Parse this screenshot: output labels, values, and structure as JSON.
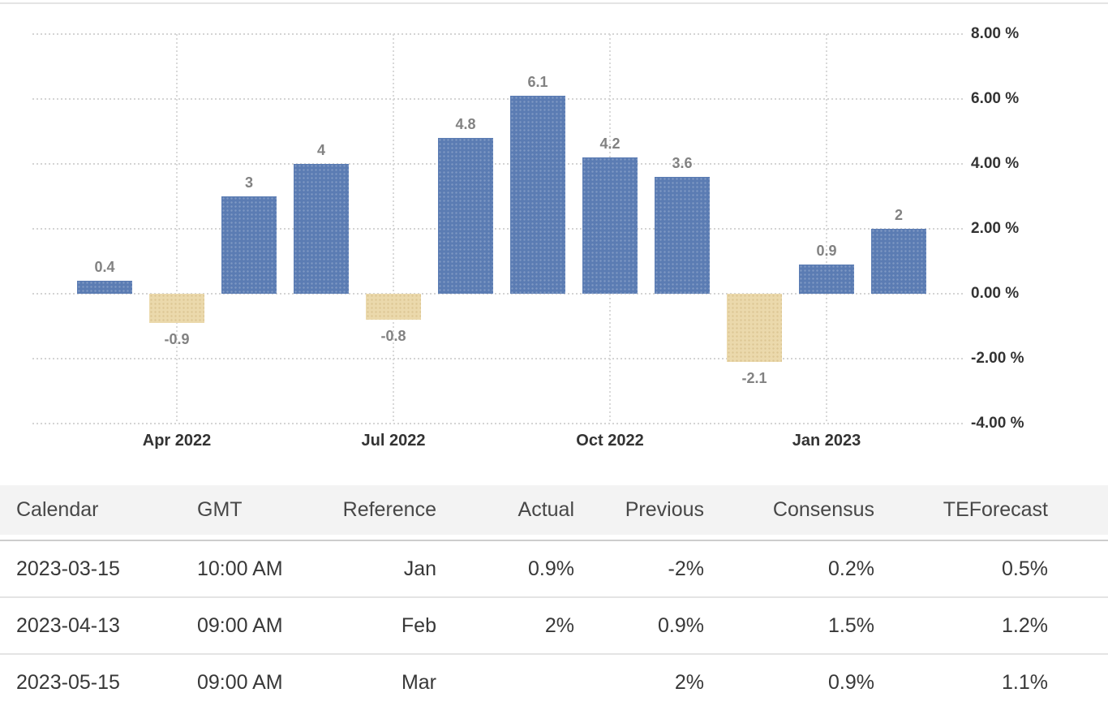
{
  "chart_data": {
    "type": "bar",
    "title": "",
    "xlabel": "",
    "ylabel": "",
    "values": [
      0.4,
      -0.9,
      3,
      4,
      -0.8,
      4.8,
      6.1,
      4.2,
      3.6,
      -2.1,
      0.9,
      2
    ],
    "bar_labels": [
      "0.4",
      "-0.9",
      "3",
      "4",
      "-0.8",
      "4.8",
      "6.1",
      "4.2",
      "3.6",
      "-2.1",
      "0.9",
      "2"
    ],
    "x_ticks": [
      {
        "index": 1,
        "label": "Apr 2022"
      },
      {
        "index": 4,
        "label": "Jul 2022"
      },
      {
        "index": 7,
        "label": "Oct 2022"
      },
      {
        "index": 10,
        "label": "Jan 2023"
      }
    ],
    "y_ticks": [
      {
        "value": 8,
        "label": "8.00 %"
      },
      {
        "value": 6,
        "label": "6.00 %"
      },
      {
        "value": 4,
        "label": "4.00 %"
      },
      {
        "value": 2,
        "label": "2.00 %"
      },
      {
        "value": 0,
        "label": "0.00 %"
      },
      {
        "value": -2,
        "label": "-2.00 %"
      },
      {
        "value": -4,
        "label": "-4.00 %"
      }
    ],
    "ylim": [
      -4,
      8
    ],
    "grid": "dotted",
    "legend": "none",
    "colors": {
      "positive_bar": "#5b7cb3",
      "negative_bar": "#ebd9ac",
      "gridline": "#d4d4d4",
      "axis_text": "#333333",
      "bar_label_text": "#828282"
    }
  },
  "table": {
    "columns": [
      "Calendar",
      "GMT",
      "Reference",
      "Actual",
      "Previous",
      "Consensus",
      "TEForecast"
    ],
    "rows": [
      [
        "2023-03-15",
        "10:00 AM",
        "Jan",
        "0.9%",
        "-2%",
        "0.2%",
        "0.5%"
      ],
      [
        "2023-04-13",
        "09:00 AM",
        "Feb",
        "2%",
        "0.9%",
        "1.5%",
        "1.2%"
      ],
      [
        "2023-05-15",
        "09:00 AM",
        "Mar",
        "",
        "2%",
        "0.9%",
        "1.1%"
      ]
    ]
  }
}
